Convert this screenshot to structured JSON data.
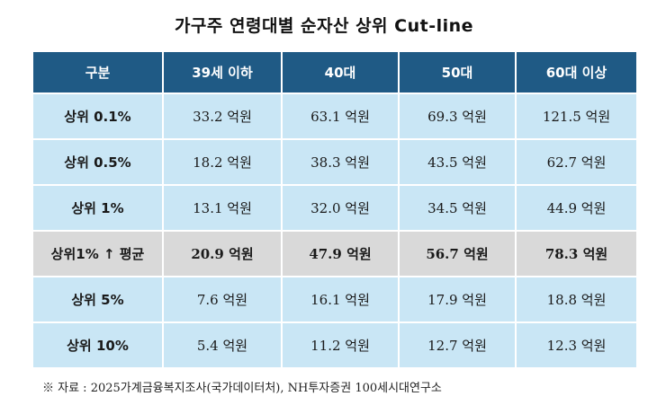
{
  "title": "가구주 연령대별  순자산 상위 Cut-line",
  "table": {
    "headers": [
      "구분",
      "39세 이하",
      "40대",
      "50대",
      "60대 이상"
    ],
    "rows": [
      {
        "label": "상위 0.1%",
        "cells": [
          "33.2 억원",
          "63.1 억원",
          "69.3 억원",
          "121.5 억원"
        ]
      },
      {
        "label": "상위 0.5%",
        "cells": [
          "18.2 억원",
          "38.3 억원",
          "43.5 억원",
          "62.7 억원"
        ]
      },
      {
        "label": "상위 1%",
        "cells": [
          "13.1 억원",
          "32.0 억원",
          "34.5 억원",
          "44.9 억원"
        ]
      },
      {
        "label": "상위1% ↑ 평균",
        "cells": [
          "20.9 억원",
          "47.9 억원",
          "56.7 억원",
          "78.3 억원"
        ]
      },
      {
        "label": "상위 5%",
        "cells": [
          "7.6 억원",
          "16.1 억원",
          "17.9 억원",
          "18.8 억원"
        ]
      },
      {
        "label": "상위 10%",
        "cells": [
          "5.4 억원",
          "11.2 억원",
          "12.7 억원",
          "12.3 억원"
        ]
      }
    ]
  },
  "source": "※ 자료 : 2025가계금융복지조사(국가데이터처), NH투자증권 100세시대연구소",
  "colors": {
    "header_bg": "#1f5a85",
    "row_bg": "#c9e6f5",
    "highlight_row_bg": "#d9d9d9"
  }
}
